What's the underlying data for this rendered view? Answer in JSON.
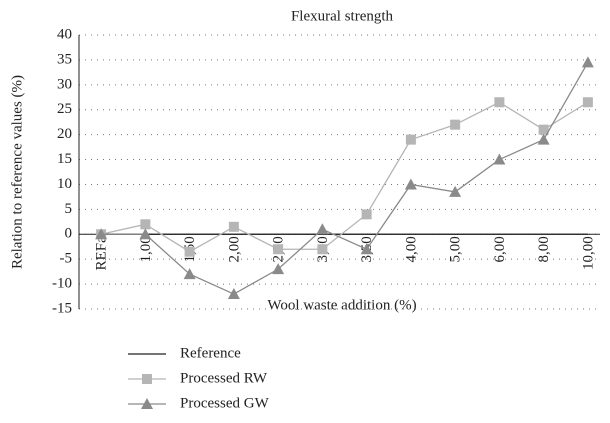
{
  "chart_data": {
    "type": "line",
    "title": "Flexural strength",
    "x_label": "Wool waste addition (%)",
    "y_label": "Relation to reference values (%)",
    "categories": [
      "REFa",
      "1,00",
      "1,50",
      "2,00",
      "2,50",
      "3,00",
      "3,50",
      "4,00",
      "5,00",
      "6,00",
      "8,00",
      "10,00"
    ],
    "series": [
      {
        "name": "Reference",
        "color": "#222222",
        "marker": "none",
        "values": [
          0,
          0,
          0,
          0,
          0,
          0,
          0,
          0,
          0,
          0,
          0,
          0
        ]
      },
      {
        "name": "Processed RW",
        "color": "#b5b5b5",
        "marker": "square",
        "values": [
          0,
          2,
          -3.5,
          1.5,
          -3,
          -3,
          4,
          19,
          22,
          26.5,
          21,
          26.5
        ]
      },
      {
        "name": "Processed GW",
        "color": "#8a8a8a",
        "marker": "triangle",
        "values": [
          0,
          0,
          -8,
          -12,
          -7,
          1,
          -3,
          10,
          8.5,
          15,
          19,
          34.5
        ]
      }
    ],
    "ylim": [
      -15,
      40
    ],
    "yticks": [
      -15,
      -10,
      -5,
      0,
      5,
      10,
      15,
      20,
      25,
      30,
      35,
      40
    ],
    "grid": true,
    "legend": "bottom"
  }
}
